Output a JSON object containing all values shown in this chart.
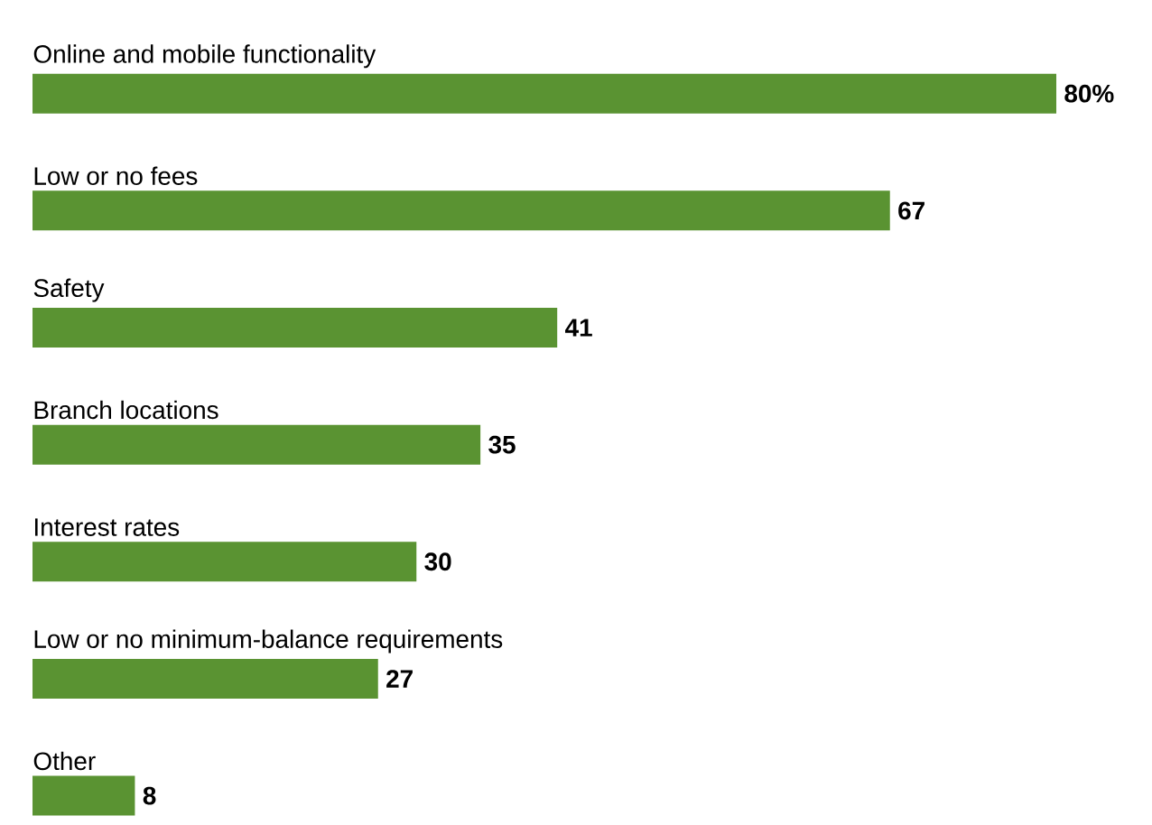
{
  "chart_data": {
    "type": "bar",
    "orientation": "horizontal",
    "categories": [
      "Online and mobile functionality",
      "Low or no fees",
      "Safety",
      "Branch locations",
      "Interest rates",
      "Low or no minimum-balance requirements",
      "Other"
    ],
    "values": [
      80,
      67,
      41,
      35,
      30,
      27,
      8
    ],
    "value_labels": [
      "80%",
      "67",
      "41",
      "35",
      "30",
      "27",
      "8"
    ],
    "color": "#5a9332"
  }
}
